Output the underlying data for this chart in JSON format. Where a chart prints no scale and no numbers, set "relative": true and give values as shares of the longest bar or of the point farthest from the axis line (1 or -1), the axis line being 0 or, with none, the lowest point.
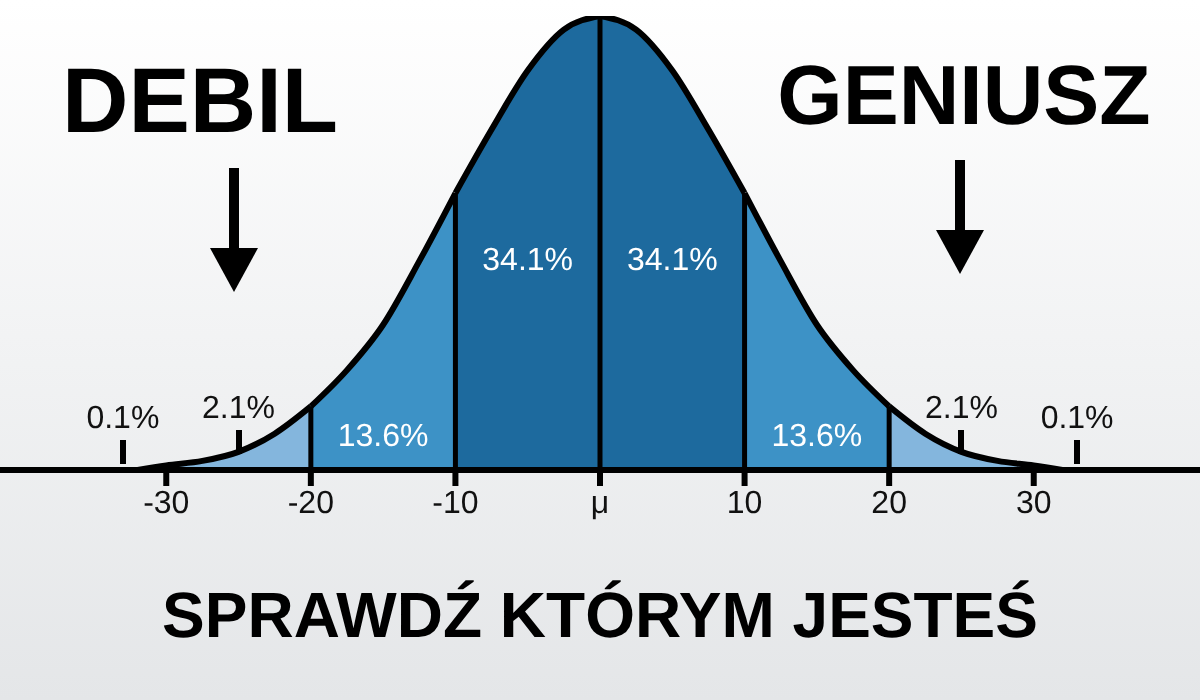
{
  "chart_data": {
    "type": "area",
    "relative": true,
    "title": "SPRAWDŹ KTÓRYM JESTEŚ",
    "grid": "x",
    "xlim": [
      -41.5,
      41.5
    ],
    "xticks": [
      -30,
      -20,
      -10,
      {
        "value": 0,
        "label": "μ"
      },
      10,
      20,
      30
    ],
    "series": [
      {
        "color": "#84b6dd",
        "x": [
          -32,
          -30,
          -27.5,
          -25,
          -22.5,
          -20
        ],
        "values": [
          0,
          0.01,
          0.02,
          0.04,
          0.08,
          0.14
        ]
      },
      {
        "color": "#3d92c6",
        "x": [
          -20,
          -17.5,
          -15,
          -12.5,
          -10
        ],
        "values": [
          0.14,
          0.22,
          0.32,
          0.46,
          0.61
        ]
      },
      {
        "color": "#1d6a9e",
        "x": [
          -10,
          -7.5,
          -5,
          -2.5,
          0
        ],
        "values": [
          0.61,
          0.75,
          0.88,
          0.97,
          1
        ]
      },
      {
        "color": "#1d6a9e",
        "x": [
          0,
          2.5,
          5,
          7.5,
          10
        ],
        "values": [
          1,
          0.97,
          0.88,
          0.75,
          0.61
        ]
      },
      {
        "color": "#3d92c6",
        "x": [
          10,
          12.5,
          15,
          17.5,
          20
        ],
        "values": [
          0.61,
          0.46,
          0.32,
          0.22,
          0.14
        ]
      },
      {
        "color": "#84b6dd",
        "x": [
          20,
          22.5,
          25,
          27.5,
          30,
          32
        ],
        "values": [
          0.14,
          0.08,
          0.04,
          0.02,
          0.01,
          0
        ]
      }
    ],
    "annotations": [
      "DEBIL",
      "GENIUSZ",
      "0.1%",
      "2.1%",
      "13.6%",
      "34.1%",
      "34.1%",
      "13.6%",
      "2.1%",
      "0.1%"
    ]
  }
}
